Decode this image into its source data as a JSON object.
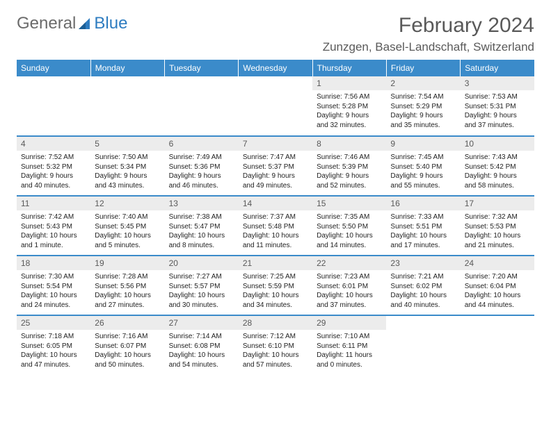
{
  "brand": {
    "part1": "General",
    "part2": "Blue"
  },
  "title": "February 2024",
  "location": "Zunzgen, Basel-Landschaft, Switzerland",
  "colors": {
    "header_bg": "#3b8bca",
    "header_fg": "#ffffff",
    "daynum_bg": "#ececec",
    "text": "#595959",
    "rule": "#3b8bca"
  },
  "weekdays": [
    "Sunday",
    "Monday",
    "Tuesday",
    "Wednesday",
    "Thursday",
    "Friday",
    "Saturday"
  ],
  "weeks": [
    [
      null,
      null,
      null,
      null,
      {
        "n": "1",
        "sr": "7:56 AM",
        "ss": "5:28 PM",
        "dl": "9 hours and 32 minutes."
      },
      {
        "n": "2",
        "sr": "7:54 AM",
        "ss": "5:29 PM",
        "dl": "9 hours and 35 minutes."
      },
      {
        "n": "3",
        "sr": "7:53 AM",
        "ss": "5:31 PM",
        "dl": "9 hours and 37 minutes."
      }
    ],
    [
      {
        "n": "4",
        "sr": "7:52 AM",
        "ss": "5:32 PM",
        "dl": "9 hours and 40 minutes."
      },
      {
        "n": "5",
        "sr": "7:50 AM",
        "ss": "5:34 PM",
        "dl": "9 hours and 43 minutes."
      },
      {
        "n": "6",
        "sr": "7:49 AM",
        "ss": "5:36 PM",
        "dl": "9 hours and 46 minutes."
      },
      {
        "n": "7",
        "sr": "7:47 AM",
        "ss": "5:37 PM",
        "dl": "9 hours and 49 minutes."
      },
      {
        "n": "8",
        "sr": "7:46 AM",
        "ss": "5:39 PM",
        "dl": "9 hours and 52 minutes."
      },
      {
        "n": "9",
        "sr": "7:45 AM",
        "ss": "5:40 PM",
        "dl": "9 hours and 55 minutes."
      },
      {
        "n": "10",
        "sr": "7:43 AM",
        "ss": "5:42 PM",
        "dl": "9 hours and 58 minutes."
      }
    ],
    [
      {
        "n": "11",
        "sr": "7:42 AM",
        "ss": "5:43 PM",
        "dl": "10 hours and 1 minute."
      },
      {
        "n": "12",
        "sr": "7:40 AM",
        "ss": "5:45 PM",
        "dl": "10 hours and 5 minutes."
      },
      {
        "n": "13",
        "sr": "7:38 AM",
        "ss": "5:47 PM",
        "dl": "10 hours and 8 minutes."
      },
      {
        "n": "14",
        "sr": "7:37 AM",
        "ss": "5:48 PM",
        "dl": "10 hours and 11 minutes."
      },
      {
        "n": "15",
        "sr": "7:35 AM",
        "ss": "5:50 PM",
        "dl": "10 hours and 14 minutes."
      },
      {
        "n": "16",
        "sr": "7:33 AM",
        "ss": "5:51 PM",
        "dl": "10 hours and 17 minutes."
      },
      {
        "n": "17",
        "sr": "7:32 AM",
        "ss": "5:53 PM",
        "dl": "10 hours and 21 minutes."
      }
    ],
    [
      {
        "n": "18",
        "sr": "7:30 AM",
        "ss": "5:54 PM",
        "dl": "10 hours and 24 minutes."
      },
      {
        "n": "19",
        "sr": "7:28 AM",
        "ss": "5:56 PM",
        "dl": "10 hours and 27 minutes."
      },
      {
        "n": "20",
        "sr": "7:27 AM",
        "ss": "5:57 PM",
        "dl": "10 hours and 30 minutes."
      },
      {
        "n": "21",
        "sr": "7:25 AM",
        "ss": "5:59 PM",
        "dl": "10 hours and 34 minutes."
      },
      {
        "n": "22",
        "sr": "7:23 AM",
        "ss": "6:01 PM",
        "dl": "10 hours and 37 minutes."
      },
      {
        "n": "23",
        "sr": "7:21 AM",
        "ss": "6:02 PM",
        "dl": "10 hours and 40 minutes."
      },
      {
        "n": "24",
        "sr": "7:20 AM",
        "ss": "6:04 PM",
        "dl": "10 hours and 44 minutes."
      }
    ],
    [
      {
        "n": "25",
        "sr": "7:18 AM",
        "ss": "6:05 PM",
        "dl": "10 hours and 47 minutes."
      },
      {
        "n": "26",
        "sr": "7:16 AM",
        "ss": "6:07 PM",
        "dl": "10 hours and 50 minutes."
      },
      {
        "n": "27",
        "sr": "7:14 AM",
        "ss": "6:08 PM",
        "dl": "10 hours and 54 minutes."
      },
      {
        "n": "28",
        "sr": "7:12 AM",
        "ss": "6:10 PM",
        "dl": "10 hours and 57 minutes."
      },
      {
        "n": "29",
        "sr": "7:10 AM",
        "ss": "6:11 PM",
        "dl": "11 hours and 0 minutes."
      },
      null,
      null
    ]
  ],
  "labels": {
    "sunrise": "Sunrise:",
    "sunset": "Sunset:",
    "daylight": "Daylight:"
  }
}
